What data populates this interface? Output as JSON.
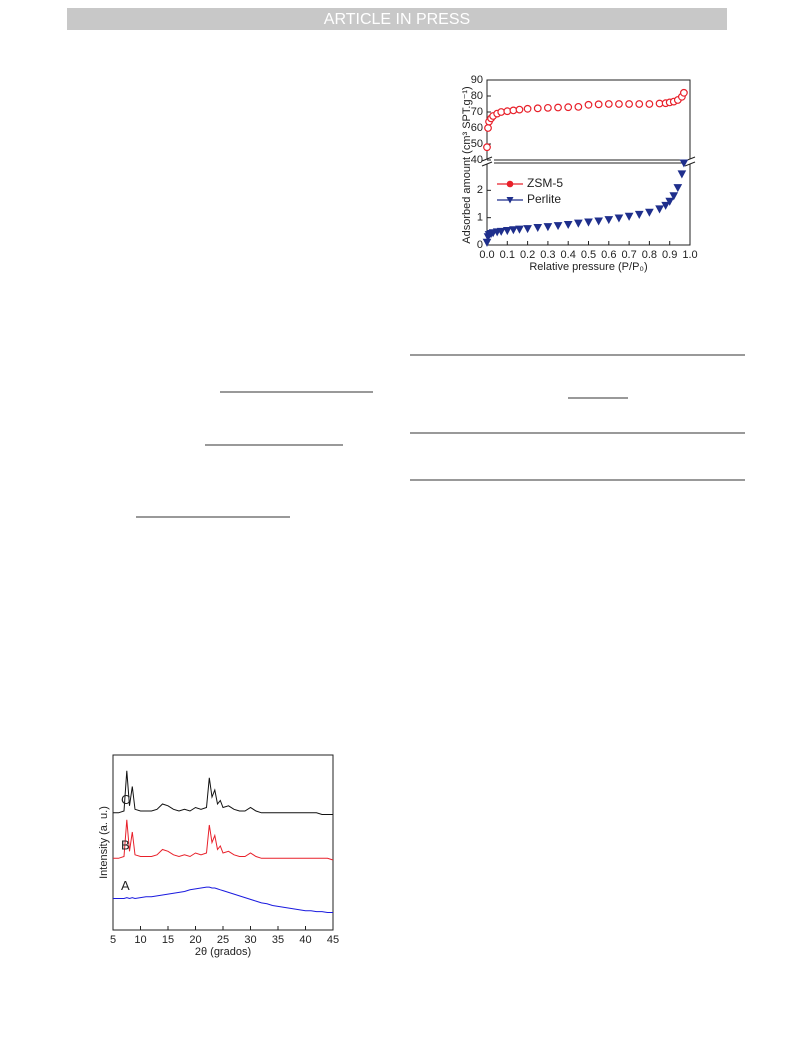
{
  "header": {
    "text": "ARTICLE IN PRESS"
  },
  "chart_data": [
    {
      "type": "scatter",
      "ylabel": "Adsorbed amount (cm³ SPT.g⁻¹)",
      "xlim": [
        0,
        1
      ],
      "ylim": [
        40,
        90
      ],
      "yticks": [
        40,
        50,
        60,
        70,
        80,
        90
      ],
      "series": [
        {
          "name": "ZSM-5",
          "color": "#e8202a",
          "marker": "circle",
          "x": [
            0,
            0.005,
            0.01,
            0.02,
            0.03,
            0.05,
            0.07,
            0.1,
            0.13,
            0.16,
            0.2,
            0.25,
            0.3,
            0.35,
            0.4,
            0.45,
            0.5,
            0.55,
            0.6,
            0.65,
            0.7,
            0.75,
            0.8,
            0.85,
            0.88,
            0.9,
            0.92,
            0.94,
            0.96,
            0.97
          ],
          "values": [
            48,
            60,
            64,
            66,
            67.5,
            69,
            70,
            70.5,
            71,
            71.5,
            72,
            72.3,
            72.6,
            72.8,
            73,
            73.2,
            74.5,
            74.8,
            75,
            75,
            75,
            75,
            75,
            75.3,
            75.5,
            76,
            76.5,
            77.5,
            79.5,
            82
          ]
        }
      ]
    },
    {
      "type": "scatter",
      "xlabel": "Relative pressure (P/P₀)",
      "xlim": [
        0,
        1
      ],
      "ylim": [
        0,
        3
      ],
      "yticks": [
        0,
        1,
        2
      ],
      "xticks": [
        {
          "value": 0,
          "label": "0.0"
        },
        0.1,
        0.2,
        0.3,
        0.4,
        0.5,
        0.6,
        0.7,
        0.8,
        0.9,
        {
          "value": 1,
          "label": "1.0"
        }
      ],
      "legend": "upper left",
      "series": [
        {
          "name": "Perlite",
          "color": "#1f2f8c",
          "marker": "triangle",
          "x": [
            0,
            0.005,
            0.01,
            0.02,
            0.03,
            0.05,
            0.07,
            0.1,
            0.13,
            0.16,
            0.2,
            0.25,
            0.3,
            0.35,
            0.4,
            0.45,
            0.5,
            0.55,
            0.6,
            0.65,
            0.7,
            0.75,
            0.8,
            0.85,
            0.88,
            0.9,
            0.92,
            0.94,
            0.96,
            0.97
          ],
          "values": [
            0.1,
            0.3,
            0.38,
            0.42,
            0.45,
            0.48,
            0.5,
            0.53,
            0.56,
            0.58,
            0.6,
            0.64,
            0.67,
            0.71,
            0.75,
            0.8,
            0.84,
            0.88,
            0.93,
            0.99,
            1.05,
            1.12,
            1.2,
            1.32,
            1.45,
            1.6,
            1.8,
            2.1,
            2.6,
            3.0
          ]
        }
      ]
    },
    {
      "type": "line",
      "xlabel": "2θ (grados)",
      "ylabel": "Intensity (a. u.)",
      "xlim": [
        5,
        45
      ],
      "ylim": [
        0,
        10
      ],
      "xticks": [
        5,
        10,
        15,
        20,
        25,
        30,
        35,
        40,
        45
      ],
      "x": [
        5,
        6,
        7,
        7.5,
        8,
        8.5,
        9,
        10,
        11,
        12,
        13,
        14,
        15,
        16,
        17,
        18,
        19,
        20,
        21,
        22,
        22.5,
        23,
        23.5,
        24,
        24.5,
        25,
        26,
        27,
        28,
        29,
        30,
        31,
        32,
        33,
        34,
        35,
        36,
        37,
        38,
        39,
        40,
        41,
        42,
        43,
        44,
        45
      ],
      "series": [
        {
          "name": "A",
          "color": "#1a1adf",
          "values": [
            1.8,
            1.8,
            1.8,
            1.85,
            1.8,
            1.85,
            1.8,
            1.85,
            1.9,
            1.9,
            1.95,
            2.0,
            2.05,
            2.1,
            2.15,
            2.2,
            2.3,
            2.35,
            2.4,
            2.45,
            2.45,
            2.4,
            2.4,
            2.35,
            2.3,
            2.25,
            2.15,
            2.05,
            1.95,
            1.85,
            1.75,
            1.65,
            1.55,
            1.5,
            1.4,
            1.35,
            1.3,
            1.25,
            1.2,
            1.15,
            1.1,
            1.1,
            1.05,
            1.05,
            1.0,
            1.0
          ]
        },
        {
          "name": "B",
          "color": "#e8202a",
          "values": [
            4.1,
            4.1,
            4.2,
            6.3,
            4.5,
            5.6,
            4.3,
            4.2,
            4.2,
            4.2,
            4.3,
            4.6,
            4.5,
            4.3,
            4.2,
            4.3,
            4.2,
            4.4,
            4.3,
            4.4,
            6.0,
            5.0,
            5.4,
            4.6,
            4.8,
            4.4,
            4.5,
            4.3,
            4.2,
            4.2,
            4.4,
            4.2,
            4.1,
            4.1,
            4.1,
            4.1,
            4.1,
            4.1,
            4.1,
            4.1,
            4.1,
            4.1,
            4.1,
            4.1,
            4.1,
            4.0
          ]
        },
        {
          "name": "C",
          "color": "#111111",
          "values": [
            6.7,
            6.7,
            6.8,
            9.1,
            7.1,
            8.2,
            6.9,
            6.8,
            6.8,
            6.8,
            6.9,
            7.2,
            7.1,
            6.9,
            6.8,
            6.9,
            6.8,
            7.0,
            6.9,
            7.0,
            8.7,
            7.6,
            8.0,
            7.2,
            7.4,
            7.0,
            7.1,
            6.9,
            6.8,
            6.8,
            7.0,
            6.8,
            6.7,
            6.7,
            6.7,
            6.7,
            6.7,
            6.7,
            6.7,
            6.7,
            6.7,
            6.7,
            6.7,
            6.6,
            6.6,
            6.6
          ]
        }
      ]
    }
  ]
}
